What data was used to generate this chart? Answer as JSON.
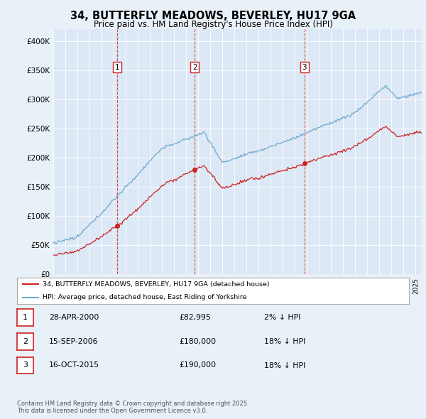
{
  "title": "34, BUTTERFLY MEADOWS, BEVERLEY, HU17 9GA",
  "subtitle": "Price paid vs. HM Land Registry's House Price Index (HPI)",
  "background_color": "#e8f0f8",
  "plot_bg_color": "#dce8f5",
  "hpi_color": "#6fa8d0",
  "price_color": "#cc2222",
  "ylim": [
    0,
    420000
  ],
  "yticks": [
    0,
    50000,
    100000,
    150000,
    200000,
    250000,
    300000,
    350000,
    400000
  ],
  "ytick_labels": [
    "£0",
    "£50K",
    "£100K",
    "£150K",
    "£200K",
    "£250K",
    "£300K",
    "£350K",
    "£400K"
  ],
  "sales": [
    {
      "date_num": 2000.29,
      "price": 82995,
      "label": "1"
    },
    {
      "date_num": 2006.71,
      "price": 180000,
      "label": "2"
    },
    {
      "date_num": 2015.79,
      "price": 190000,
      "label": "3"
    }
  ],
  "sale_dates_str": [
    "28-APR-2000",
    "15-SEP-2006",
    "16-OCT-2015"
  ],
  "sale_prices_str": [
    "£82,995",
    "£180,000",
    "£190,000"
  ],
  "sale_hpi_pct": [
    "2% ↓ HPI",
    "18% ↓ HPI",
    "18% ↓ HPI"
  ],
  "legend_property": "34, BUTTERFLY MEADOWS, BEVERLEY, HU17 9GA (detached house)",
  "legend_hpi": "HPI: Average price, detached house, East Riding of Yorkshire",
  "footnote": "Contains HM Land Registry data © Crown copyright and database right 2025.\nThis data is licensed under the Open Government Licence v3.0."
}
